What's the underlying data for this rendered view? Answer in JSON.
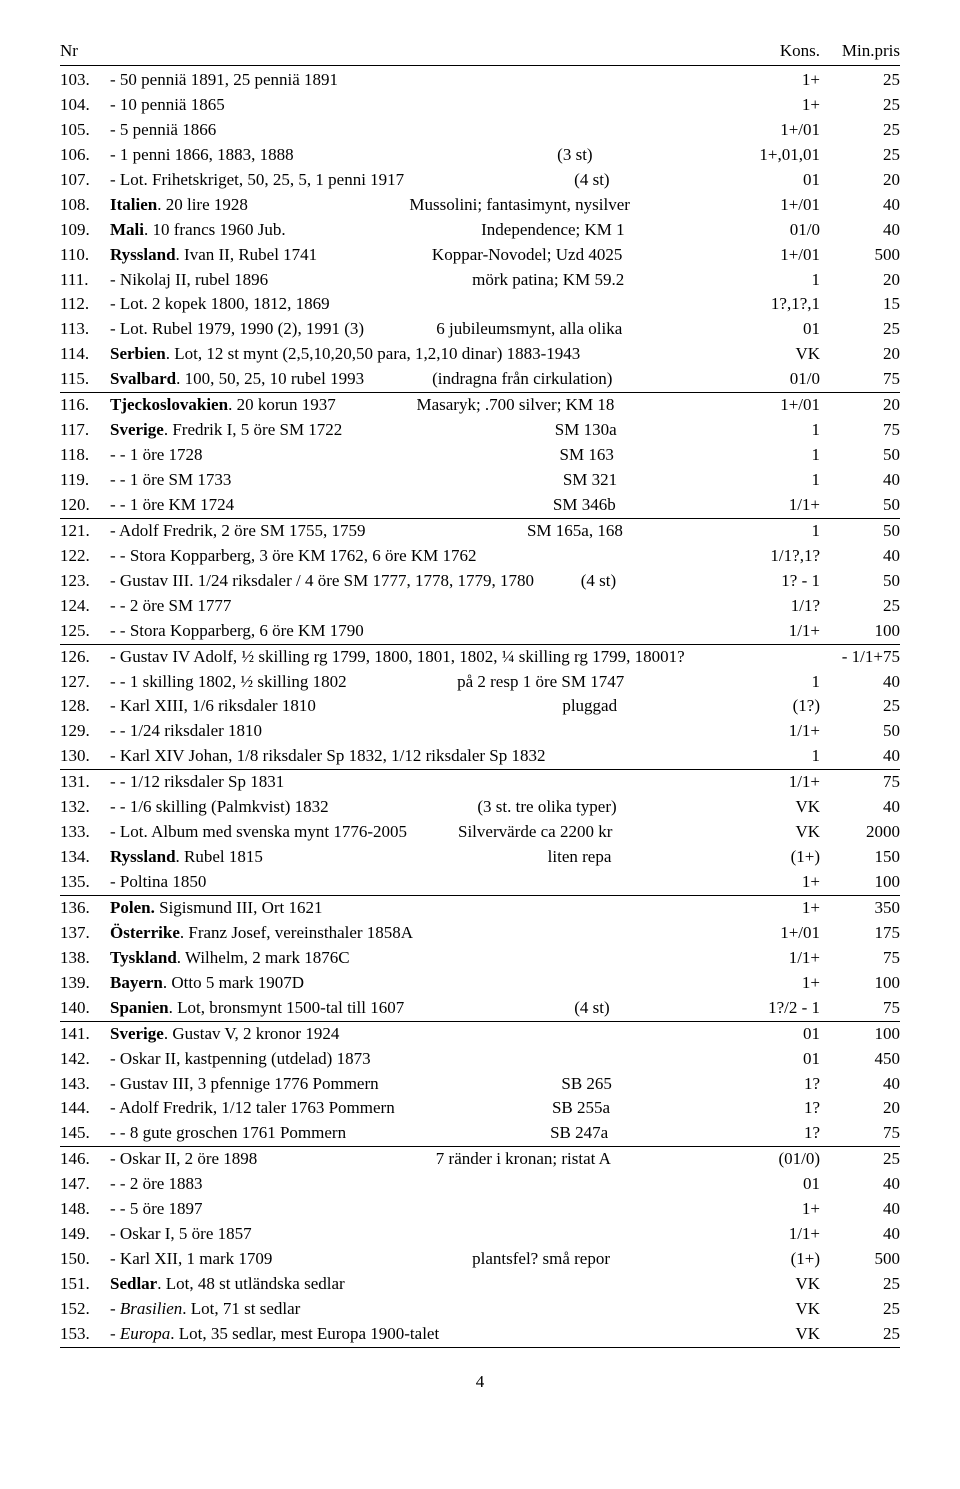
{
  "header": {
    "nr": "Nr",
    "kons": "Kons.",
    "min": "Min.pris"
  },
  "pageNumber": "4",
  "sections": [
    {
      "rows": [
        {
          "nr": "103.",
          "desc": "- 50 penniä 1891, 25 penniä 1891",
          "kons": "1+",
          "pris": "25"
        },
        {
          "nr": "104.",
          "desc": "- 10 penniä 1865",
          "kons": "1+",
          "pris": "25"
        },
        {
          "nr": "105.",
          "desc": "- 5 penniä 1866",
          "kons": "1+/01",
          "pris": "25"
        },
        {
          "nr": "106.",
          "desc": "- 1 penni 1866, 1883, 1888                                                              (3 st)",
          "kons": "1+,01,01",
          "pris": "25"
        },
        {
          "nr": "107.",
          "desc": "- Lot. Frihetskriget, 50, 25, 5, 1 penni 1917                                        (4 st)",
          "kons": "01",
          "pris": "20"
        },
        {
          "nr": "108.",
          "desc": "<b>Italien</b>. 20 lire 1928                                      Mussolini; fantasimynt, nysilver",
          "kons": "1+/01",
          "pris": "40"
        },
        {
          "nr": "109.",
          "desc": "<b>Mali</b>. 10 francs 1960 Jub.                                              Independence; KM 1",
          "kons": "01/0",
          "pris": "40"
        },
        {
          "nr": "110.",
          "desc": "<b>Ryssland</b>. Ivan II, Rubel 1741                           Koppar-Novodel; Uzd 4025",
          "kons": "1+/01",
          "pris": "500"
        },
        {
          "nr": "111.",
          "desc": "- Nikolaj II, rubel 1896                                                mörk patina; KM 59.2",
          "kons": "1",
          "pris": "20"
        },
        {
          "nr": "112.",
          "desc": "- Lot. 2 kopek 1800, 1812, 1869",
          "kons": "1?,1?,1",
          "pris": "15"
        },
        {
          "nr": "113.",
          "desc": "- Lot. Rubel 1979, 1990 (2), 1991 (3)                 6 jubileumsmynt, alla olika",
          "kons": "01",
          "pris": "25"
        },
        {
          "nr": "114.",
          "desc": "<b>Serbien</b>. Lot, 12 st mynt (2,5,10,20,50 para, 1,2,10 dinar) 1883-1943",
          "kons": "VK",
          "pris": "20"
        },
        {
          "nr": "115.",
          "desc": "<b>Svalbard</b>. 100, 50, 25, 10 rubel 1993                (indragna från cirkulation)",
          "kons": "01/0",
          "pris": "75"
        }
      ]
    },
    {
      "rows": [
        {
          "nr": "116.",
          "desc": "<b>Tjeckoslovakien</b>. 20 korun 1937                   Masaryk; .700 silver; KM 18",
          "kons": "1+/01",
          "pris": "20"
        },
        {
          "nr": "117.",
          "desc": "<b>Sverige</b>. Fredrik I, 5 öre SM 1722                                                  SM 130a",
          "kons": "1",
          "pris": "75"
        },
        {
          "nr": "118.",
          "desc": "- - 1 öre 1728                                                                                    SM 163",
          "kons": "1",
          "pris": "50"
        },
        {
          "nr": "119.",
          "desc": "- - 1 öre SM 1733                                                                              SM 321",
          "kons": "1",
          "pris": "40"
        },
        {
          "nr": "120.",
          "desc": "- - 1 öre KM 1724                                                                           SM 346b",
          "kons": "1/1+",
          "pris": "50"
        }
      ]
    },
    {
      "rows": [
        {
          "nr": "121.",
          "desc": "- Adolf Fredrik, 2 öre SM 1755, 1759                                      SM 165a, 168",
          "kons": "1",
          "pris": "50"
        },
        {
          "nr": "122.",
          "desc": "- - Stora Kopparberg, 3 öre KM 1762, 6 öre KM 1762",
          "kons": "1/1?,1?",
          "pris": "40"
        },
        {
          "nr": "123.",
          "desc": "- Gustav III. 1/24 riksdaler / 4 öre SM 1777, 1778, 1779, 1780           (4 st)",
          "kons": "1? - 1",
          "pris": "50"
        },
        {
          "nr": "124.",
          "desc": "- - 2 öre SM 1777",
          "kons": "1/1?",
          "pris": "25"
        },
        {
          "nr": "125.",
          "desc": "- - Stora Kopparberg, 6 öre KM 1790",
          "kons": "1/1+",
          "pris": "100"
        }
      ]
    },
    {
      "rows": [
        {
          "nr": "126.",
          "desc": "- Gustav IV Adolf, ½ skilling rg 1799, 1800, 1801, 1802, ¼ skilling rg 1799, 18001?",
          "kons": "",
          "pris": "- 1/1+75"
        },
        {
          "nr": "127.",
          "desc": "- - 1 skilling 1802, ½ skilling 1802                          på 2 resp 1 öre SM 1747",
          "kons": "1",
          "pris": "40"
        },
        {
          "nr": "128.",
          "desc": "- Karl XIII, 1/6 riksdaler 1810                                                          pluggad",
          "kons": "(1?)",
          "pris": "25"
        },
        {
          "nr": "129.",
          "desc": "- - 1/24 riksdaler 1810",
          "kons": "1/1+",
          "pris": "50"
        },
        {
          "nr": "130.",
          "desc": "- Karl XIV Johan, 1/8 riksdaler Sp 1832, 1/12 riksdaler Sp 1832",
          "kons": "1",
          "pris": "40"
        }
      ]
    },
    {
      "rows": [
        {
          "nr": "131.",
          "desc": "- - 1/12 riksdaler Sp 1831",
          "kons": "1/1+",
          "pris": "75"
        },
        {
          "nr": "132.",
          "desc": "- - 1/6 skilling (Palmkvist) 1832                                   (3 st. tre olika typer)",
          "kons": "VK",
          "pris": "40"
        },
        {
          "nr": "133.",
          "desc": "- Lot. Album med svenska mynt 1776-2005            Silvervärde ca 2200 kr",
          "kons": "VK",
          "pris": "2000"
        },
        {
          "nr": "134.",
          "desc": "<b>Ryssland</b>. Rubel 1815                                                                   liten repa",
          "kons": "(1+)",
          "pris": "150"
        },
        {
          "nr": "135.",
          "desc": "- Poltina 1850",
          "kons": "1+",
          "pris": "100"
        }
      ]
    },
    {
      "rows": [
        {
          "nr": "136.",
          "desc": "<b>Polen.</b> Sigismund III, Ort 1621",
          "kons": "1+",
          "pris": "350"
        },
        {
          "nr": "137.",
          "desc": "<b>Österrike</b>. Franz Josef, vereinsthaler 1858A",
          "kons": "1+/01",
          "pris": "175"
        },
        {
          "nr": "138.",
          "desc": "<b>Tyskland</b>. Wilhelm, 2 mark 1876C",
          "kons": "1/1+",
          "pris": "75"
        },
        {
          "nr": "139.",
          "desc": "<b>Bayern</b>. Otto 5 mark 1907D",
          "kons": "1+",
          "pris": "100"
        },
        {
          "nr": "140.",
          "desc": "<b>Spanien</b>. Lot, bronsmynt 1500-tal till 1607                                        (4 st)",
          "kons": "1?/2 - 1",
          "pris": "75"
        }
      ]
    },
    {
      "rows": [
        {
          "nr": "141.",
          "desc": "<b>Sverige</b>. Gustav V, 2 kronor 1924",
          "kons": "01",
          "pris": "100"
        },
        {
          "nr": "142.",
          "desc": "- Oskar II, kastpenning (utdelad) 1873",
          "kons": "01",
          "pris": "450"
        },
        {
          "nr": "143.",
          "desc": "- Gustav III, 3 pfennige 1776 Pommern                                           SB 265",
          "kons": "1?",
          "pris": "40"
        },
        {
          "nr": "144.",
          "desc": "- Adolf Fredrik, 1/12 taler 1763 Pommern                                     SB 255a",
          "kons": "1?",
          "pris": "20"
        },
        {
          "nr": "145.",
          "desc": "- - 8 gute groschen 1761 Pommern                                                SB 247a",
          "kons": "1?",
          "pris": "75"
        }
      ]
    },
    {
      "rows": [
        {
          "nr": "146.",
          "desc": "- Oskar II, 2 öre 1898                                          7 ränder i kronan; ristat A",
          "kons": "(01/0)",
          "pris": "25"
        },
        {
          "nr": "147.",
          "desc": "- - 2 öre 1883",
          "kons": "01",
          "pris": "40"
        },
        {
          "nr": "148.",
          "desc": "- - 5 öre 1897",
          "kons": "1+",
          "pris": "40"
        },
        {
          "nr": "149.",
          "desc": "- Oskar I, 5 öre 1857",
          "kons": "1/1+",
          "pris": "40"
        },
        {
          "nr": "150.",
          "desc": "- Karl XII, 1 mark 1709                                               plantsfel? små repor",
          "kons": "(1+)",
          "pris": "500"
        },
        {
          "nr": "151.",
          "desc": "<b>Sedlar</b>. Lot, 48 st utländska sedlar",
          "kons": "VK",
          "pris": "25"
        },
        {
          "nr": "152.",
          "desc": "- <i>Brasilien</i>. Lot, 71 st sedlar",
          "kons": "VK",
          "pris": "25"
        },
        {
          "nr": "153.",
          "desc": "- <i>Europa</i>. Lot, 35 sedlar, mest Europa 1900-talet",
          "kons": "VK",
          "pris": "25"
        }
      ]
    }
  ]
}
